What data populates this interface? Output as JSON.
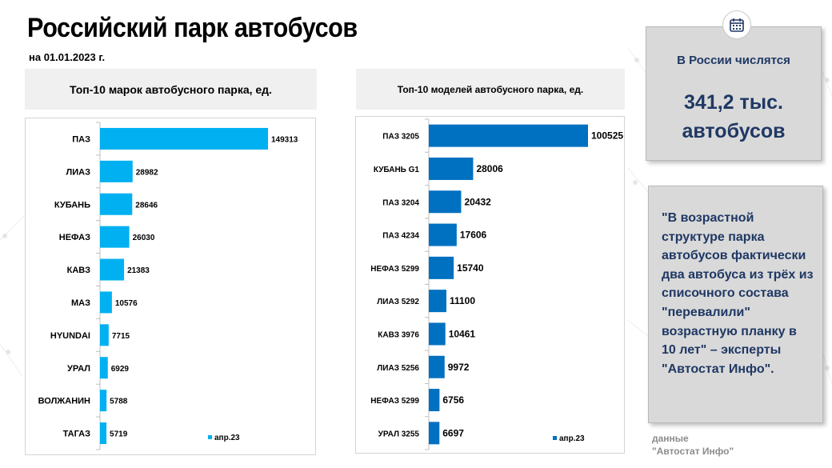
{
  "title": "Российский парк автобусов",
  "subtitle": "на 01.01.2023 г.",
  "brands_chart": {
    "header": "Топ-10 марок автобусного парка, ед.",
    "color": "#00b0f0"
  },
  "models_chart": {
    "header": "Топ-10 моделей автобусного парка, ед.",
    "color": "#0070c0"
  },
  "stat": {
    "label": "В России числятся",
    "value": "341,2 тыс. автобусов"
  },
  "quote": "\"В возрастной структуре парка автобусов фактически два автобуса из трёх из списочного состава \"перевалили\" возрастную планку в 10 лет\" – эксперты \"Автостат Инфо\".",
  "source": "данные\n\"Автостат Инфо\"",
  "icons": {
    "calendar": "calendar-icon"
  },
  "chart_data": [
    {
      "type": "bar",
      "orientation": "horizontal",
      "title": "Топ-10 марок автобусного парка, ед.",
      "categories": [
        "ПАЗ",
        "ЛИАЗ",
        "КУБАНЬ",
        "НЕФАЗ",
        "КАВЗ",
        "МАЗ",
        "HYUNDAI",
        "УРАЛ",
        "ВОЛЖАНИН",
        "ТАГАЗ"
      ],
      "series": [
        {
          "name": "апр.23",
          "values": [
            149313,
            28982,
            28646,
            26030,
            21383,
            10576,
            7715,
            6929,
            5788,
            5719
          ]
        }
      ],
      "legend": "bottom-right",
      "data_labels": true
    },
    {
      "type": "bar",
      "orientation": "horizontal",
      "title": "Топ-10 моделей автобусного парка, ед.",
      "categories": [
        "ПАЗ 3205",
        "КУБАНЬ G1",
        "ПАЗ 3204",
        "ПАЗ 4234",
        "НЕФАЗ 5299",
        "ЛИАЗ 5292",
        "КАВЗ 3976",
        "ЛИАЗ 5256",
        "НЕФАЗ 5299",
        "УРАЛ 3255"
      ],
      "series": [
        {
          "name": "апр.23",
          "values": [
            100525,
            28006,
            20432,
            17606,
            15740,
            11100,
            10461,
            9972,
            6756,
            6697
          ]
        }
      ],
      "legend": "bottom-right",
      "data_labels": true
    }
  ]
}
